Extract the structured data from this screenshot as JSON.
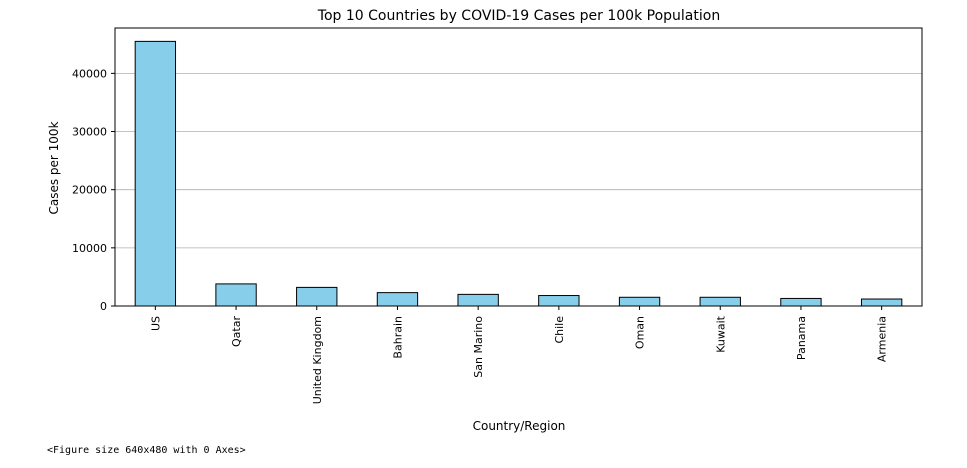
{
  "chart_data": {
    "type": "bar",
    "title": "Top 10 Countries by COVID-19 Cases per 100k Population",
    "xlabel": "Country/Region",
    "ylabel": "Cases per 100k",
    "categories": [
      "US",
      "Qatar",
      "United Kingdom",
      "Bahrain",
      "San Marino",
      "Chile",
      "Oman",
      "Kuwait",
      "Panama",
      "Armenia"
    ],
    "values": [
      45500,
      3800,
      3200,
      2300,
      2000,
      1800,
      1500,
      1500,
      1300,
      1200
    ],
    "ylim": [
      0,
      47800
    ],
    "yticks": [
      0,
      10000,
      20000,
      30000,
      40000
    ],
    "ytick_labels": [
      "0",
      "10000",
      "20000",
      "30000",
      "40000"
    ],
    "grid": "y",
    "bar_color": "#87CEEB",
    "edge_color": "#000000"
  },
  "figure_caption": "<Figure size 640x480 with 0 Axes>"
}
